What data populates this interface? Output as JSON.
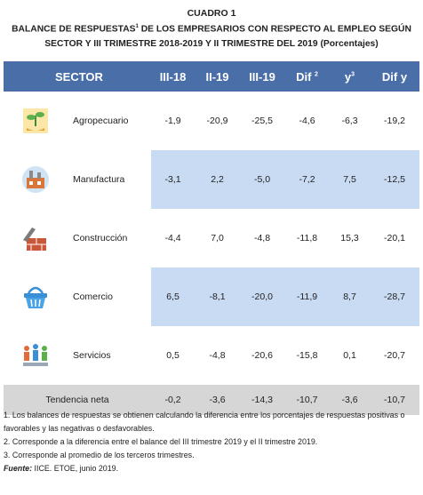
{
  "title": "CUADRO 1",
  "subtitle_a": "BALANCE DE RESPUESTAS",
  "subtitle_sup": "1",
  "subtitle_b": " DE LOS EMPRESARIOS CON RESPECTO AL EMPLEO SEGÚN",
  "subtitle_line2": "SECTOR Y III TRIMESTRE 2018-2019 Y II TRIMESTRE DEL 2019 (Porcentajes)",
  "headers": {
    "sector": "SECTOR",
    "c1": "III-18",
    "c2": "II-19",
    "c3": "III-19",
    "c4": "Dif",
    "c4_sup": "2",
    "c5": "y",
    "c5_sup": "3",
    "c6": "Dif y"
  },
  "rows": [
    {
      "sector": "Agropecuario",
      "icon": "plant-hand-icon",
      "values": [
        "-1,9",
        "-20,9",
        "-25,5",
        "-4,6",
        "-6,3",
        "-19,2"
      ]
    },
    {
      "sector": "Manufactura",
      "icon": "factory-icon",
      "values": [
        "-3,1",
        "2,2",
        "-5,0",
        "-7,2",
        "7,5",
        "-12,5"
      ]
    },
    {
      "sector": "Construcción",
      "icon": "brick-wall-trowel-icon",
      "values": [
        "-4,4",
        "7,0",
        "-4,8",
        "-11,8",
        "15,3",
        "-20,1"
      ]
    },
    {
      "sector": "Comercio",
      "icon": "shopping-basket-icon",
      "values": [
        "6,5",
        "-8,1",
        "-20,0",
        "-11,9",
        "8,7",
        "-28,7"
      ]
    },
    {
      "sector": "Servicios",
      "icon": "services-people-icon",
      "values": [
        "0,5",
        "-4,8",
        "-20,6",
        "-15,8",
        "0,1",
        "-20,7"
      ]
    }
  ],
  "total": {
    "label": "Tendencia neta",
    "values": [
      "-0,2",
      "-3,6",
      "-14,3",
      "-10,7",
      "-3,6",
      "-10,7"
    ]
  },
  "notes": {
    "n1": "1. Los balances de respuestas se obtienen calculando la diferencia entre los porcentajes de respuestas positivas o favorables y las negativas o desfavorables.",
    "n2": "2. Corresponde a la diferencia entre el balance del III trimestre 2019 y el II trimestre 2019.",
    "n3": "3. Corresponde al promedio de los terceros trimestres.",
    "source_label": "Fuente:",
    "source_text": "IICE. ETOE, junio 2019."
  },
  "colors": {
    "header": "#4a6ea8",
    "highlight": "#c9daf3",
    "total": "#d6d6d6"
  }
}
